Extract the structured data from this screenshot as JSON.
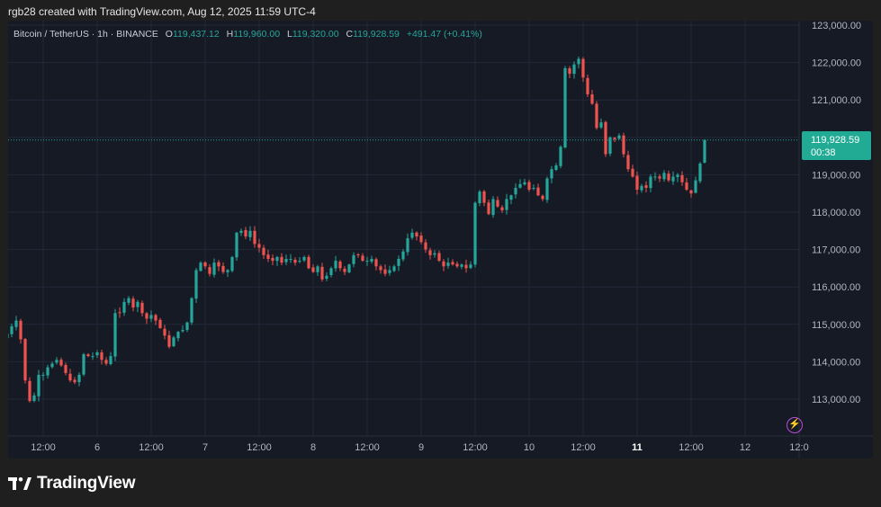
{
  "credit": "rgb28 created with TradingView.com, Aug 12, 2025 11:59 UTC-4",
  "legend": {
    "symbol": "Bitcoin / TetherUS · 1h · BINANCE",
    "o_label": "O",
    "o_value": "119,437.12",
    "h_label": "H",
    "h_value": "119,960.00",
    "l_label": "L",
    "l_value": "119,320.00",
    "c_label": "C",
    "c_value": "119,928.59",
    "change": "+491.47 (+0.41%)"
  },
  "price_tag": {
    "price": "119,928.59",
    "countdown": "00:38"
  },
  "logo_text": "TradingView",
  "colors": {
    "up": "#26a69a",
    "down": "#ef5350",
    "background": "#151a25",
    "grid": "#232838",
    "axis_text": "#b2b5be"
  },
  "chart_data": {
    "type": "candlestick",
    "interval": "1h",
    "y_ticks": [
      "113,000.00",
      "114,000.00",
      "115,000.00",
      "116,000.00",
      "117,000.00",
      "118,000.00",
      "119,000.00",
      "120,000.00",
      "121,000.00",
      "122,000.00",
      "123,000.00"
    ],
    "x_ticks": [
      {
        "label": "12:00",
        "hour": 12
      },
      {
        "label": "6",
        "hour": 24
      },
      {
        "label": "12:00",
        "hour": 36
      },
      {
        "label": "7",
        "hour": 48
      },
      {
        "label": "12:00",
        "hour": 60
      },
      {
        "label": "8",
        "hour": 72
      },
      {
        "label": "12:00",
        "hour": 84
      },
      {
        "label": "9",
        "hour": 96
      },
      {
        "label": "12:00",
        "hour": 108
      },
      {
        "label": "10",
        "hour": 120
      },
      {
        "label": "12:00",
        "hour": 132
      },
      {
        "label": "11",
        "hour": 144,
        "bold": true
      },
      {
        "label": "12:00",
        "hour": 156
      },
      {
        "label": "12",
        "hour": 168
      },
      {
        "label": "12:0",
        "hour": 180
      }
    ],
    "ylim": [
      112200,
      123200
    ],
    "last_price": 119928.59,
    "first_hour": 4,
    "closes": [
      114750,
      114950,
      115100,
      114600,
      113500,
      112950,
      113100,
      113650,
      113650,
      113850,
      113950,
      114050,
      113900,
      113700,
      113500,
      113450,
      113650,
      114200,
      114150,
      114150,
      114250,
      114050,
      113950,
      114150,
      115300,
      115300,
      115600,
      115700,
      115450,
      115600,
      115300,
      115150,
      115250,
      115100,
      114900,
      114700,
      114400,
      114650,
      114800,
      114850,
      115050,
      115700,
      116450,
      116650,
      116550,
      116350,
      116650,
      116550,
      116400,
      116450,
      116800,
      117450,
      117500,
      117350,
      117500,
      117150,
      117050,
      116850,
      116750,
      116700,
      116800,
      116650,
      116750,
      116750,
      116650,
      116700,
      116800,
      116500,
      116400,
      116550,
      116200,
      116300,
      116500,
      116700,
      116500,
      116400,
      116600,
      116850,
      116850,
      116700,
      116700,
      116750,
      116550,
      116450,
      116350,
      116450,
      116550,
      116750,
      116950,
      117300,
      117450,
      117350,
      117200,
      117000,
      116850,
      116900,
      116700,
      116550,
      116650,
      116600,
      116550,
      116600,
      116500,
      116600,
      118250,
      118550,
      118250,
      117950,
      118350,
      118150,
      118050,
      118350,
      118450,
      118650,
      118750,
      118800,
      118600,
      118650,
      118450,
      118350,
      118900,
      119150,
      119250,
      119750,
      121850,
      121700,
      121950,
      122100,
      121600,
      121150,
      120900,
      120250,
      120400,
      119550,
      120000,
      119950,
      120050,
      119550,
      119150,
      118950,
      118600,
      118700,
      118650,
      118950,
      118950,
      118900,
      119050,
      118850,
      118950,
      119000,
      118800,
      118600,
      118500,
      118850,
      119300,
      119928.59
    ]
  }
}
